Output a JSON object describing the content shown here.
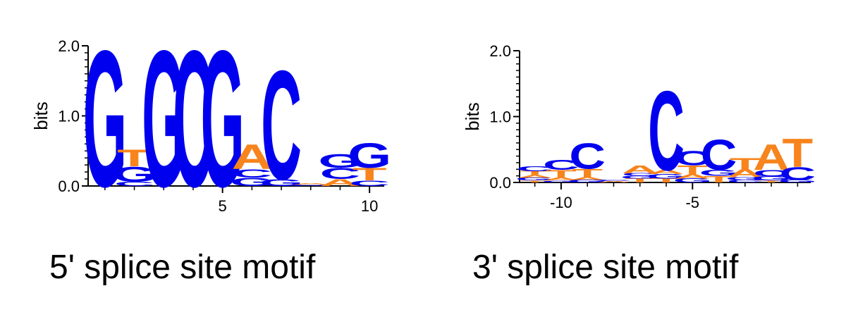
{
  "colors": {
    "A": "#f7841c",
    "T": "#f7841c",
    "C": "#0000ee",
    "G": "#0000ee",
    "axis": "#000000"
  },
  "chart_data": [
    {
      "type": "sequence-logo",
      "caption": "5' splice site motif",
      "ylabel": "bits",
      "ylim": [
        0,
        2
      ],
      "ytick_labels": [
        "0.0",
        "1.0",
        "2.0"
      ],
      "xticks": [
        5,
        10
      ],
      "positions": [
        {
          "x": 1,
          "letters": [
            {
              "l": "G",
              "h": 2.0
            }
          ]
        },
        {
          "x": 2,
          "letters": [
            {
              "l": "C",
              "h": 0.06
            },
            {
              "l": "G",
              "h": 0.22
            },
            {
              "l": "T",
              "h": 0.25
            }
          ]
        },
        {
          "x": 3,
          "letters": [
            {
              "l": "G",
              "h": 2.0
            }
          ]
        },
        {
          "x": 4,
          "letters": [
            {
              "l": "C",
              "h": 2.0
            }
          ]
        },
        {
          "x": 5,
          "letters": [
            {
              "l": "G",
              "h": 2.0
            }
          ]
        },
        {
          "x": 6,
          "letters": [
            {
              "l": "G",
              "h": 0.12
            },
            {
              "l": "C",
              "h": 0.12
            },
            {
              "l": "A",
              "h": 0.36
            }
          ]
        },
        {
          "x": 7,
          "letters": [
            {
              "l": "G",
              "h": 0.1
            },
            {
              "l": "C",
              "h": 1.6
            }
          ]
        },
        {
          "x": 8,
          "letters": [
            {
              "l": "G",
              "h": 0.02
            },
            {
              "l": "A",
              "h": 0.02
            }
          ]
        },
        {
          "x": 9,
          "letters": [
            {
              "l": "A",
              "h": 0.1
            },
            {
              "l": "C",
              "h": 0.16
            },
            {
              "l": "G",
              "h": 0.2
            }
          ]
        },
        {
          "x": 10,
          "letters": [
            {
              "l": "C",
              "h": 0.08
            },
            {
              "l": "T",
              "h": 0.18
            },
            {
              "l": "G",
              "h": 0.36
            }
          ]
        }
      ]
    },
    {
      "type": "sequence-logo",
      "caption": "3' splice site motif",
      "ylabel": "bits",
      "ylim": [
        0,
        2
      ],
      "ytick_labels": [
        "0.0",
        "1.0",
        "2.0"
      ],
      "xticks": [
        -10,
        -5
      ],
      "positions": [
        {
          "x": -11,
          "letters": [
            {
              "l": "T",
              "h": 0.03
            },
            {
              "l": "G",
              "h": 0.04
            },
            {
              "l": "A",
              "h": 0.04
            },
            {
              "l": "T",
              "h": 0.06
            },
            {
              "l": "C",
              "h": 0.08
            }
          ]
        },
        {
          "x": -10,
          "letters": [
            {
              "l": "G",
              "h": 0.03
            },
            {
              "l": "A",
              "h": 0.04
            },
            {
              "l": "T",
              "h": 0.12
            },
            {
              "l": "C",
              "h": 0.16
            }
          ]
        },
        {
          "x": -9,
          "letters": [
            {
              "l": "G",
              "h": 0.04
            },
            {
              "l": "A",
              "h": 0.04
            },
            {
              "l": "T",
              "h": 0.13
            },
            {
              "l": "C",
              "h": 0.4
            }
          ]
        },
        {
          "x": -8,
          "letters": [
            {
              "l": "A",
              "h": 0.02
            },
            {
              "l": "C",
              "h": 0.02
            }
          ]
        },
        {
          "x": -7,
          "letters": [
            {
              "l": "T",
              "h": 0.06
            },
            {
              "l": "G",
              "h": 0.04
            },
            {
              "l": "C",
              "h": 0.04
            },
            {
              "l": "A",
              "h": 0.12
            }
          ]
        },
        {
          "x": -6,
          "letters": [
            {
              "l": "T",
              "h": 0.06
            },
            {
              "l": "G",
              "h": 0.07
            },
            {
              "l": "A",
              "h": 0.06
            },
            {
              "l": "C",
              "h": 1.24
            }
          ]
        },
        {
          "x": -5,
          "letters": [
            {
              "l": "G",
              "h": 0.06
            },
            {
              "l": "A",
              "h": 0.06
            },
            {
              "l": "T",
              "h": 0.14
            },
            {
              "l": "C",
              "h": 0.22
            }
          ]
        },
        {
          "x": -4,
          "letters": [
            {
              "l": "T",
              "h": 0.1
            },
            {
              "l": "G",
              "h": 0.09
            },
            {
              "l": "C",
              "h": 0.47
            }
          ]
        },
        {
          "x": -3,
          "letters": [
            {
              "l": "C",
              "h": 0.04
            },
            {
              "l": "G",
              "h": 0.04
            },
            {
              "l": "A",
              "h": 0.12
            },
            {
              "l": "T",
              "h": 0.18
            }
          ]
        },
        {
          "x": -2,
          "letters": [
            {
              "l": "T",
              "h": 0.03
            },
            {
              "l": "G",
              "h": 0.06
            },
            {
              "l": "C",
              "h": 0.1
            },
            {
              "l": "A",
              "h": 0.4
            }
          ]
        },
        {
          "x": -1,
          "letters": [
            {
              "l": "G",
              "h": 0.04
            },
            {
              "l": "C",
              "h": 0.2
            },
            {
              "l": "T",
              "h": 0.44
            }
          ]
        }
      ]
    }
  ]
}
